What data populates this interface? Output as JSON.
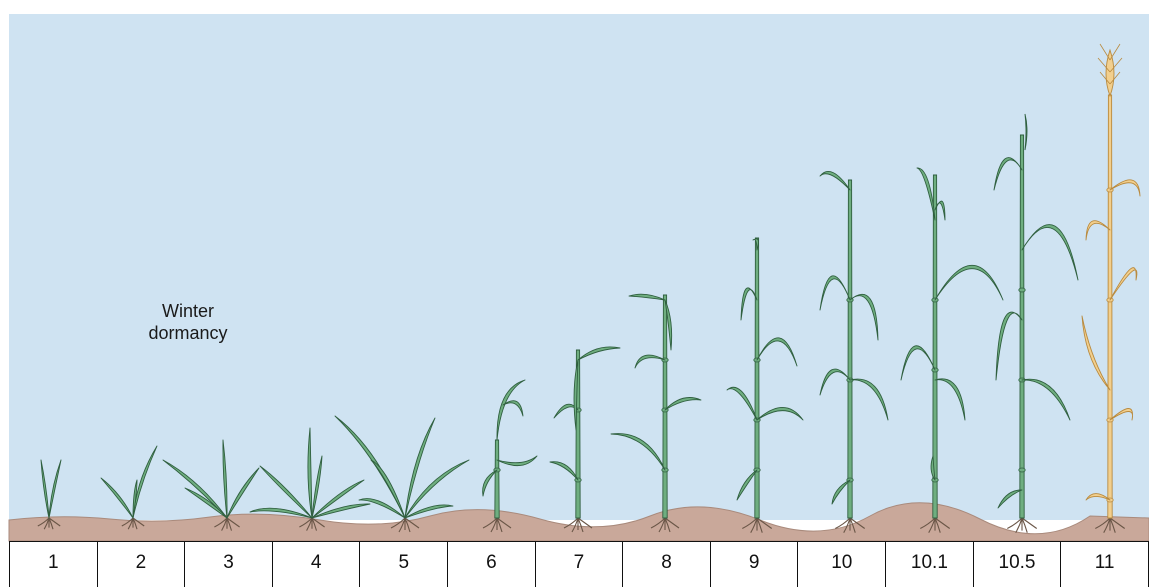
{
  "annotation": {
    "line1": "Winter",
    "line2": "dormancy"
  },
  "stages": [
    "1",
    "2",
    "3",
    "4",
    "5",
    "6",
    "7",
    "8",
    "9",
    "10",
    "10.1",
    "10.5",
    "11"
  ],
  "colors": {
    "sky": "#cfe3f2",
    "soil": "#c9a89a",
    "soil_dark": "#a98a7c",
    "leaf_green": "#6fae80",
    "leaf_dark": "#2f5f3f",
    "mature_stalk": "#f2cf8d",
    "mature_outline": "#b98a3e",
    "root": "#6a5647"
  }
}
